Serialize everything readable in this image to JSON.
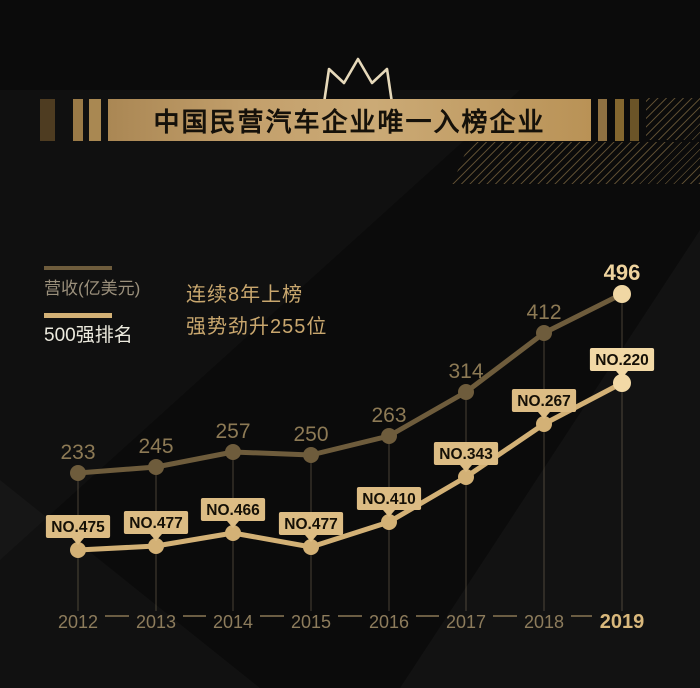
{
  "banner": {
    "title": "中国民营汽车企业唯一入榜企业"
  },
  "intro": {
    "line1": "连续8年上榜",
    "line2": "强势劲升255位"
  },
  "legend": {
    "revenue_label": "营收(亿美元)",
    "rank_label": "500强排名"
  },
  "chart_data": {
    "type": "line",
    "categories": [
      "2012",
      "2013",
      "2014",
      "2015",
      "2016",
      "2017",
      "2018",
      "2019"
    ],
    "series": [
      {
        "name": "营收(亿美元)",
        "values": [
          233,
          245,
          257,
          250,
          263,
          314,
          412,
          496
        ],
        "value_labels": [
          "233",
          "245",
          "257",
          "250",
          "263",
          "314",
          "412",
          "496"
        ],
        "color": "#6e5c3c",
        "highlight_point_color": "#f0d7a4"
      },
      {
        "name": "500强排名",
        "values": [
          475,
          477,
          466,
          477,
          410,
          343,
          267,
          220
        ],
        "value_labels": [
          "NO.475",
          "NO.477",
          "NO.466",
          "NO.477",
          "NO.410",
          "NO.343",
          "NO.267",
          "NO.220"
        ],
        "color": "#d3b176",
        "badge_color": "#dcbc84",
        "highlight_point_color": "#f2d9a6",
        "highlight_badge_color": "#f2d9a6"
      }
    ],
    "highlight_category": "2019",
    "grid": false,
    "legend_position": "top-left",
    "x_axis": {
      "tick_color": "#8d7c5c",
      "highlight_tick_color": "#d9b87c",
      "dash_color": "#6b5d43",
      "drop_line_color": "rgba(205,185,140,0.32)"
    }
  },
  "colors": {
    "background": "#0b0b0b",
    "banner_gold": "#c3a06c",
    "banner_text": "#15110a",
    "crown_outline": "#e6d9ba",
    "intro_text": "#c9a76e"
  }
}
